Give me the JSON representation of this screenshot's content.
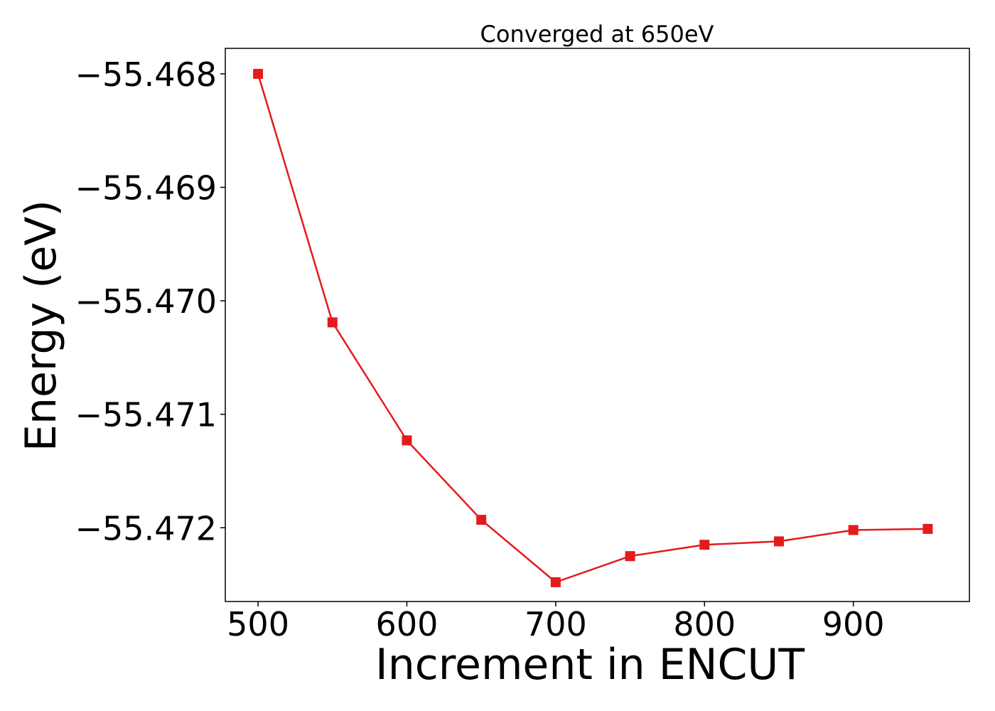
{
  "chart_data": {
    "type": "line",
    "title": "Converged at 650eV",
    "xlabel": "Increment in ENCUT",
    "ylabel": "Energy (eV)",
    "x": [
      500,
      550,
      600,
      650,
      700,
      750,
      800,
      850,
      900,
      950
    ],
    "series": [
      {
        "values": [
          -55.468,
          -55.47019,
          -55.47123,
          -55.47193,
          -55.47248,
          -55.47225,
          -55.47215,
          -55.47212,
          -55.47202,
          -55.47201
        ],
        "color": "#e41a1c",
        "marker": "square"
      }
    ],
    "xlim": [
      478,
      978
    ],
    "ylim": [
      -55.47265,
      -55.467775
    ],
    "xticks": [
      500,
      600,
      700,
      800,
      900
    ],
    "xtick_labels": [
      "500",
      "600",
      "700",
      "800",
      "900"
    ],
    "yticks": [
      -55.468,
      -55.469,
      -55.47,
      -55.471,
      -55.472
    ],
    "ytick_labels": [
      "−55.468",
      "−55.469",
      "−55.470",
      "−55.471",
      "−55.472"
    ],
    "grid": false,
    "legend": "none"
  }
}
